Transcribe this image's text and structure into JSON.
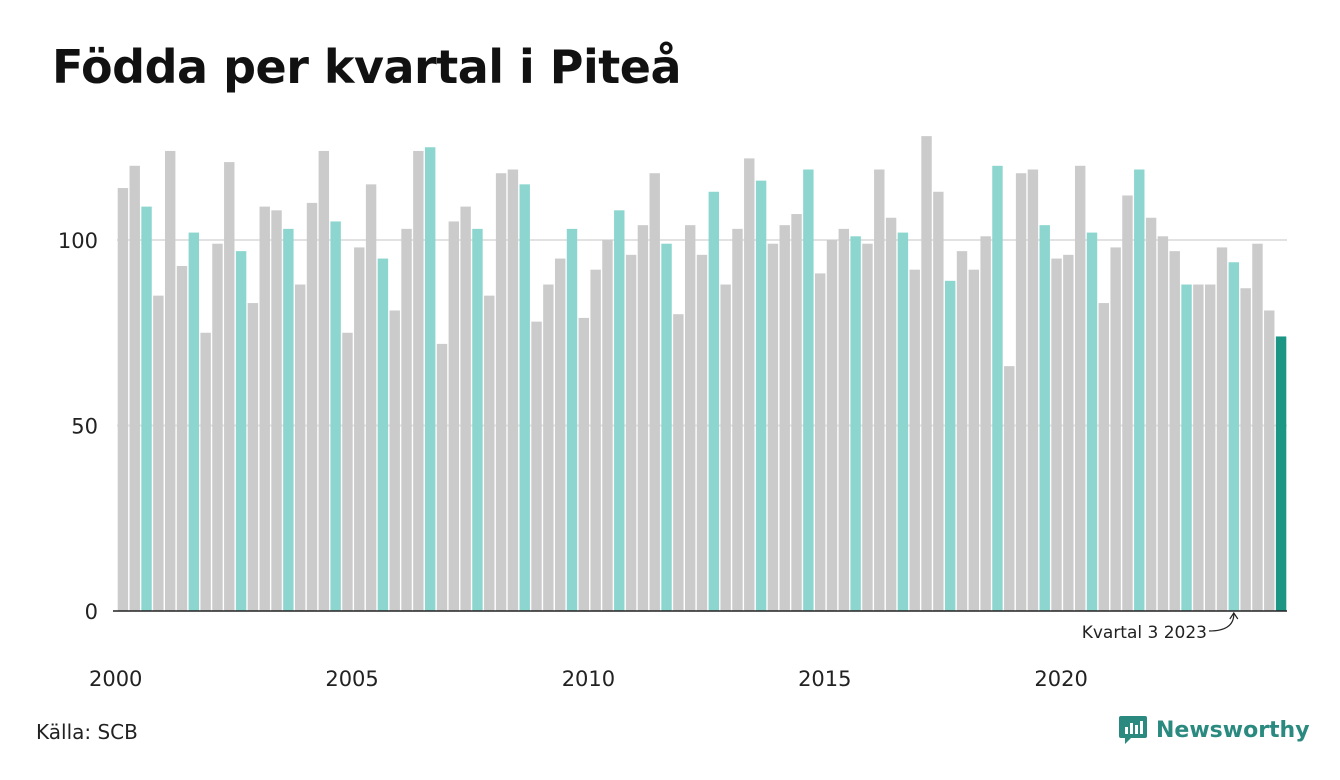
{
  "header": {
    "title": "Födda per kvartal i Piteå"
  },
  "footer": {
    "source": "Källa: SCB",
    "brand": "Newsworthy",
    "brand_icon": "newsworthy-logo-icon"
  },
  "colors": {
    "q3": "#8cd6cf",
    "other": "#cbcbcb",
    "latest": "#1b9685",
    "grid": "#e2e2e2",
    "axis": "#222222"
  },
  "chart_data": {
    "type": "bar",
    "title": "Födda per kvartal i Piteå",
    "xlabel": "",
    "ylabel": "",
    "ylim": [
      0,
      125
    ],
    "yticks": [
      0,
      50,
      100
    ],
    "xtick_labels": [
      "2000",
      "2005",
      "2010",
      "2015",
      "2020"
    ],
    "grid": true,
    "start": "2000 Q1",
    "annotation": {
      "text": "Kvartal 3 2023"
    },
    "values": [
      114,
      120,
      109,
      85,
      124,
      93,
      102,
      75,
      99,
      121,
      97,
      83,
      109,
      108,
      103,
      88,
      110,
      124,
      105,
      75,
      98,
      115,
      95,
      81,
      103,
      124,
      125,
      72,
      105,
      109,
      103,
      85,
      118,
      119,
      115,
      78,
      88,
      95,
      103,
      79,
      92,
      100,
      108,
      96,
      104,
      118,
      99,
      80,
      104,
      96,
      113,
      88,
      103,
      122,
      116,
      99,
      104,
      107,
      119,
      91,
      100,
      103,
      101,
      99,
      119,
      106,
      102,
      92,
      128,
      113,
      89,
      97,
      92,
      101,
      120,
      66,
      118,
      119,
      104,
      95,
      96,
      120,
      102,
      83,
      98,
      112,
      119,
      106,
      101,
      97,
      88,
      88,
      88,
      98,
      94,
      87,
      99,
      81,
      74
    ]
  }
}
